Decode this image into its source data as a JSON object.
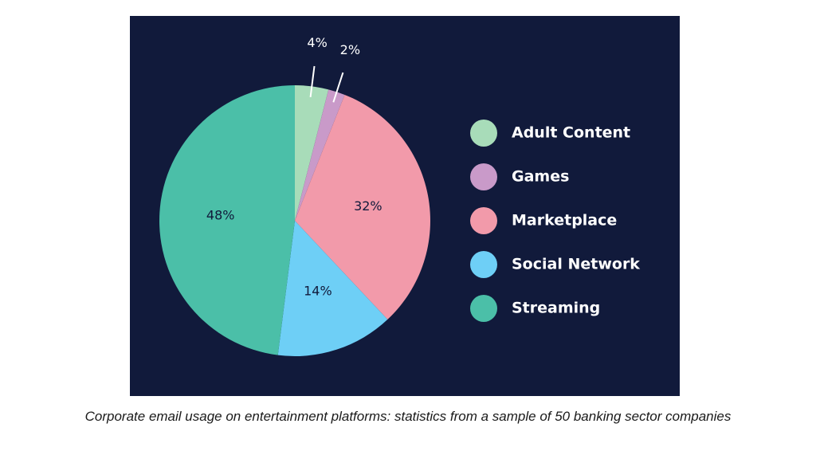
{
  "chart_data": {
    "type": "pie",
    "categories": [
      "Adult Content",
      "Games",
      "Marketplace",
      "Social Network",
      "Streaming"
    ],
    "values": [
      4,
      2,
      32,
      14,
      48
    ],
    "labels": [
      "4%",
      "2%",
      "32%",
      "14%",
      "48%"
    ],
    "colors": [
      "#a8dcb9",
      "#c99ac9",
      "#f29aaa",
      "#6ecff6",
      "#4bbfa8"
    ],
    "legend_position": "right",
    "background": "#111a3b",
    "label_color_inside": "#111a3b",
    "label_color_outside": "#ffffff"
  },
  "caption": "Corporate email usage on entertainment platforms: statistics from a sample of 50 banking sector companies"
}
